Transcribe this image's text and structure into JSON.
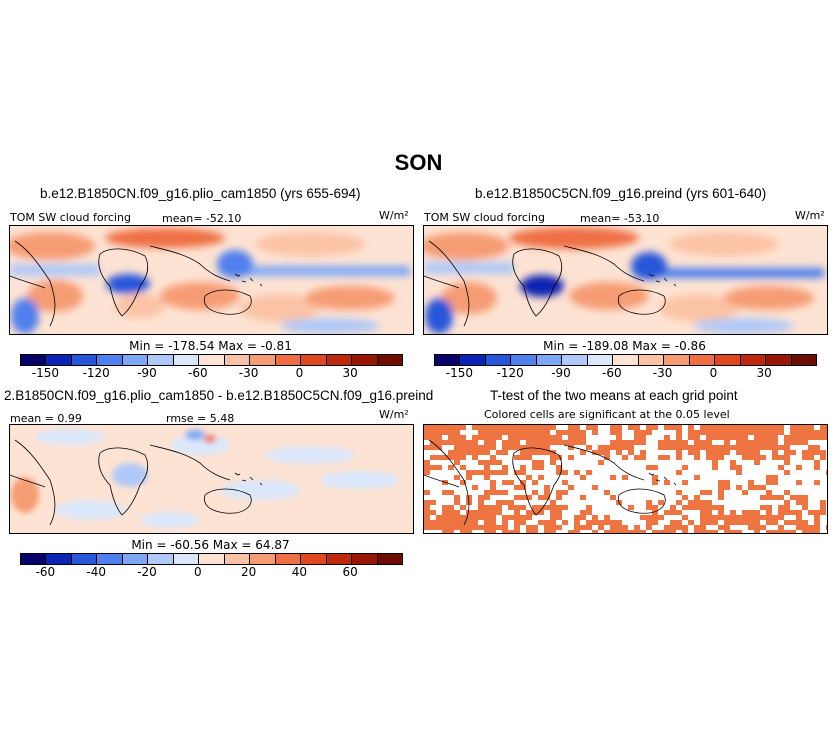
{
  "season": "SON",
  "panels": {
    "p1": {
      "title": "b.e12.B1850CN.f09_g16.plio_cam1850 (yrs 655-694)",
      "variable": "TOM SW cloud forcing",
      "mean": "mean= -52.10",
      "units": "W/m²",
      "minmax": "Min = -178.54 Max =  -0.81"
    },
    "p2": {
      "title": "b.e12.B1850C5CN.f09_g16.preind (yrs 601-640)",
      "variable": "TOM SW cloud forcing",
      "mean": "mean= -53.10",
      "units": "W/m²",
      "minmax": "Min = -189.08 Max =  -0.86"
    },
    "p3": {
      "title": "2.B1850CN.f09_g16.plio_cam1850 - b.e12.B1850C5CN.f09_g16.preind",
      "mean": "mean =  0.99",
      "rmse": "rmse =  5.48",
      "units": "W/m²",
      "minmax": "Min = -60.56 Max =  64.87"
    },
    "p4": {
      "title": "T-test of the two means at each grid point",
      "subtitle": "Colored cells are significant at the 0.05 level"
    }
  },
  "colorbar_main": {
    "colors": [
      "#08036a",
      "#0b24b3",
      "#2857d9",
      "#4f80ee",
      "#7fa7f5",
      "#b0c9f8",
      "#dbe7fb",
      "#fde3d3",
      "#fbc3a6",
      "#f69c74",
      "#ef6f45",
      "#e0461f",
      "#bf2a0f",
      "#981706",
      "#6e0c00"
    ],
    "ticks": [
      "-150",
      "-120",
      "-90",
      "-60",
      "-30",
      "0",
      "30"
    ]
  },
  "colorbar_diff": {
    "colors": [
      "#08036a",
      "#0b24b3",
      "#2857d9",
      "#4f80ee",
      "#7fa7f5",
      "#b0c9f8",
      "#dbe7fb",
      "#fde3d3",
      "#fbc3a6",
      "#f69c74",
      "#ef6f45",
      "#e0461f",
      "#bf2a0f",
      "#981706",
      "#6e0c00"
    ],
    "ticks": [
      "-60",
      "-40",
      "-20",
      "0",
      "20",
      "40",
      "60"
    ]
  },
  "significance_color": "#ee7542"
}
